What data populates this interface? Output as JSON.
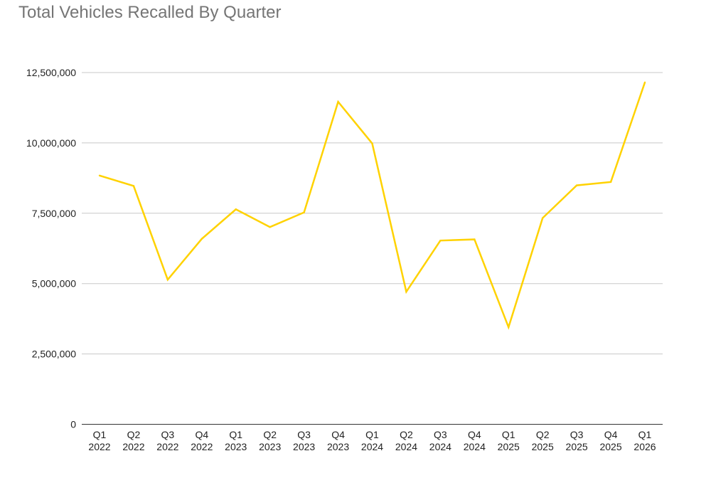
{
  "chart_data": {
    "type": "line",
    "title": "Total Vehicles Recalled By Quarter",
    "xlabel": "",
    "ylabel": "",
    "categories": [
      [
        "Q1",
        "2022"
      ],
      [
        "Q2",
        "2022"
      ],
      [
        "Q3",
        "2022"
      ],
      [
        "Q4",
        "2022"
      ],
      [
        "Q1",
        "2023"
      ],
      [
        "Q2",
        "2023"
      ],
      [
        "Q3",
        "2023"
      ],
      [
        "Q4",
        "2023"
      ],
      [
        "Q1",
        "2024"
      ],
      [
        "Q2",
        "2024"
      ],
      [
        "Q3",
        "2024"
      ],
      [
        "Q4",
        "2024"
      ],
      [
        "Q1",
        "2025"
      ],
      [
        "Q2",
        "2025"
      ],
      [
        "Q3",
        "2025"
      ],
      [
        "Q4",
        "2025"
      ],
      [
        "Q1",
        "2026"
      ]
    ],
    "series": [
      {
        "values": [
          8840000,
          8470000,
          5140000,
          6590000,
          7640000,
          7010000,
          7530000,
          11460000,
          9980000,
          4710000,
          6530000,
          6570000,
          3450000,
          7330000,
          8490000,
          8610000,
          12150000
        ],
        "color": "#FFD200"
      }
    ],
    "ylim": [
      0,
      12500000
    ],
    "yticks": [
      0,
      2500000,
      5000000,
      7500000,
      10000000,
      12500000
    ],
    "ytick_labels": [
      "0",
      "2,500,000",
      "5,000,000",
      "7,500,000",
      "10,000,000",
      "12,500,000"
    ],
    "grid": true,
    "gridline_color": "#C8C8C8",
    "legend": "none"
  }
}
